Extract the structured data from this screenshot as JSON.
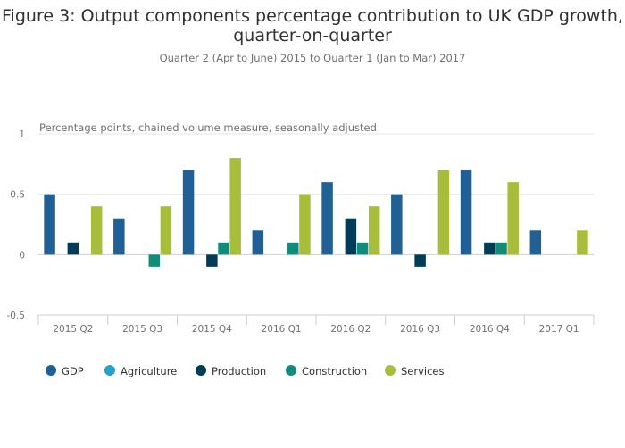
{
  "chart_data": {
    "type": "bar",
    "title_line1": "Figure 3: Output components percentage contribution to UK GDP growth,",
    "title_line2": "quarter-on-quarter",
    "subtitle": "Quarter 2 (Apr to June) 2015 to Quarter 1 (Jan to Mar) 2017",
    "ylabel": "Percentage points, chained volume measure, seasonally adjusted",
    "xlabel": "",
    "ylim": [
      -0.5,
      1
    ],
    "yticks": [
      "1",
      "0.5",
      "0",
      "-0.5"
    ],
    "ytick_values": [
      1,
      0.5,
      0,
      -0.5
    ],
    "grid": true,
    "legend_position": "bottom-left",
    "categories": [
      "2015 Q2",
      "2015 Q3",
      "2015 Q4",
      "2016 Q1",
      "2016 Q2",
      "2016 Q3",
      "2016 Q4",
      "2017 Q1"
    ],
    "series": [
      {
        "name": "GDP",
        "color": "#206095",
        "values": [
          0.5,
          0.3,
          0.7,
          0.2,
          0.6,
          0.5,
          0.7,
          0.2
        ]
      },
      {
        "name": "Agriculture",
        "color": "#27A0CC",
        "values": [
          0,
          0,
          0,
          0,
          0,
          0,
          0,
          0
        ]
      },
      {
        "name": "Production",
        "color": "#003C57",
        "values": [
          0.1,
          0,
          -0.1,
          0,
          0.3,
          -0.1,
          0.1,
          0
        ]
      },
      {
        "name": "Construction",
        "color": "#118C7B",
        "values": [
          0,
          -0.1,
          0.1,
          0.1,
          0.1,
          0,
          0.1,
          0
        ]
      },
      {
        "name": "Services",
        "color": "#A8BD3A",
        "values": [
          0.4,
          0.4,
          0.8,
          0.5,
          0.4,
          0.7,
          0.6,
          0.2
        ]
      }
    ]
  }
}
